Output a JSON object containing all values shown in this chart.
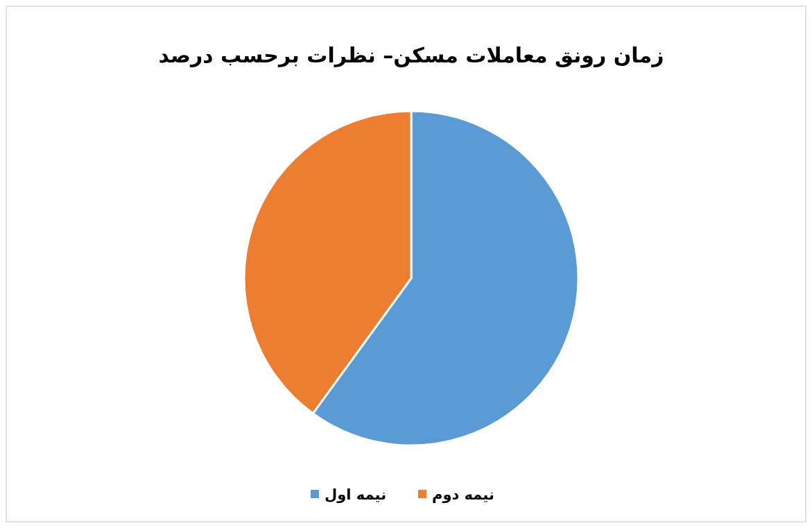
{
  "chart_data": {
    "type": "pie",
    "title": "زمان رونق معاملات مسکن– نظرات برحسب درصد",
    "categories": [
      "نیمه اول",
      "نیمه دوم"
    ],
    "values": [
      60,
      40
    ],
    "colors": [
      "#5b9bd5",
      "#ed7d31"
    ],
    "legend": "bottom"
  }
}
